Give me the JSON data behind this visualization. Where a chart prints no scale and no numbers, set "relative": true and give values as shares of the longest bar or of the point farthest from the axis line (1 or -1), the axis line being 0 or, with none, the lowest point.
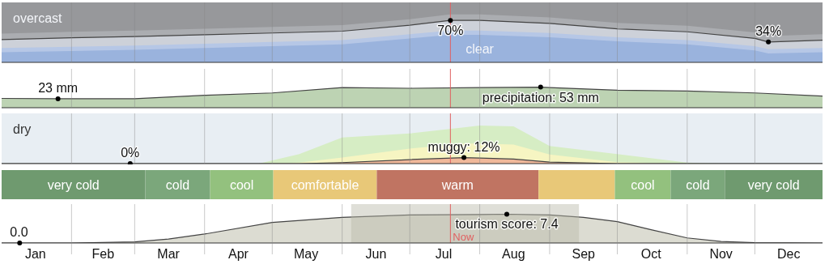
{
  "chart_data": [
    {
      "type": "area",
      "x": [
        "--01-01",
        "--02-01",
        "--03-01",
        "--04-01",
        "--05-01",
        "--06-01",
        "--07-01",
        "--07-19",
        "--08-01",
        "--09-01",
        "--10-01",
        "--11-01",
        "--12-01",
        "--12-07",
        "--12-31"
      ],
      "series": [
        {
          "color": "#abadb1",
          "values": [
            48,
            51,
            53,
            56,
            59,
            62,
            72,
            80,
            80,
            75,
            66,
            61,
            50,
            44,
            47
          ]
        },
        {
          "color": "#cdd1d9",
          "values": [
            38,
            41,
            43,
            46,
            49,
            52,
            62,
            70,
            70,
            65,
            56,
            51,
            40,
            34,
            37
          ],
          "value_labels": [
            null,
            null,
            null,
            null,
            null,
            null,
            null,
            "70%",
            null,
            null,
            null,
            null,
            null,
            "34%",
            null
          ]
        },
        {
          "color": "#b6c7e6",
          "values": [
            24,
            26,
            28,
            31,
            34,
            37,
            47,
            53,
            53,
            49,
            42,
            37,
            27,
            22,
            24
          ]
        },
        {
          "name": "clear",
          "color": "#9ab3dd",
          "values": [
            17,
            19,
            21,
            24,
            27,
            30,
            40,
            46,
            46,
            42,
            35,
            30,
            20,
            15,
            17
          ]
        }
      ],
      "bands": [
        {
          "axis": "x",
          "from": "--01-01",
          "to": "--12-31",
          "color": "#97989b",
          "label": "overcast"
        }
      ],
      "xlim": [
        "--01-01",
        "--12-31"
      ],
      "ylim": [
        0,
        100
      ],
      "xticks": [
        {
          "value": "--01-16",
          "label": "Jan"
        },
        {
          "value": "--02-15",
          "label": "Feb"
        },
        {
          "value": "--03-16",
          "label": "Mar"
        },
        {
          "value": "--04-16",
          "label": "Apr"
        },
        {
          "value": "--05-16",
          "label": "May"
        },
        {
          "value": "--06-16",
          "label": "Jun"
        },
        {
          "value": "--07-16",
          "label": "Jul"
        },
        {
          "value": "--08-16",
          "label": "Aug"
        },
        {
          "value": "--09-16",
          "label": "Sep"
        },
        {
          "value": "--10-16",
          "label": "Oct"
        },
        {
          "value": "--11-16",
          "label": "Nov"
        },
        {
          "value": "--12-16",
          "label": "Dec"
        },
        {
          "value": "--02-01",
          "label": null
        },
        {
          "value": "--03-01",
          "label": null
        },
        {
          "value": "--04-01",
          "label": null
        },
        {
          "value": "--05-01",
          "label": null
        },
        {
          "value": "--06-01",
          "label": null
        },
        {
          "value": "--07-01",
          "label": null
        },
        {
          "value": "--08-01",
          "label": null
        },
        {
          "value": "--09-01",
          "label": null
        },
        {
          "value": "--10-01",
          "label": null
        },
        {
          "value": "--11-01",
          "label": null
        },
        {
          "value": "--12-01",
          "label": null
        }
      ],
      "tick_labels": false,
      "grid": "x",
      "ref_lines": [
        {
          "axis": "x",
          "value": "--07-19",
          "label": null,
          "color": "#e06060"
        }
      ]
    },
    {
      "type": "area",
      "x": [
        "--01-01",
        "--01-26",
        "--03-01",
        "--04-01",
        "--05-01",
        "--06-01",
        "--07-01",
        "--08-01",
        "--08-28",
        "--09-01",
        "--10-01",
        "--11-01",
        "--12-01",
        "--12-31"
      ],
      "series": [
        {
          "color": "#bdd3b3",
          "values": [
            24,
            23,
            23,
            32,
            38,
            52,
            50,
            52,
            53,
            52,
            45,
            43,
            38,
            30
          ],
          "value_labels": [
            null,
            "23 mm",
            null,
            null,
            null,
            null,
            null,
            null,
            "precipitation: 53 mm",
            null,
            null,
            null,
            null,
            null
          ]
        }
      ],
      "xlim": [
        "--01-01",
        "--12-31"
      ],
      "ylim": [
        0,
        100
      ],
      "xticks": [
        {
          "value": "--01-16",
          "label": "Jan"
        },
        {
          "value": "--02-15",
          "label": "Feb"
        },
        {
          "value": "--03-16",
          "label": "Mar"
        },
        {
          "value": "--04-16",
          "label": "Apr"
        },
        {
          "value": "--05-16",
          "label": "May"
        },
        {
          "value": "--06-16",
          "label": "Jun"
        },
        {
          "value": "--07-16",
          "label": "Jul"
        },
        {
          "value": "--08-16",
          "label": "Aug"
        },
        {
          "value": "--09-16",
          "label": "Sep"
        },
        {
          "value": "--10-16",
          "label": "Oct"
        },
        {
          "value": "--11-16",
          "label": "Nov"
        },
        {
          "value": "--12-16",
          "label": "Dec"
        },
        {
          "value": "--02-01",
          "label": null
        },
        {
          "value": "--03-01",
          "label": null
        },
        {
          "value": "--04-01",
          "label": null
        },
        {
          "value": "--05-01",
          "label": null
        },
        {
          "value": "--06-01",
          "label": null
        },
        {
          "value": "--07-01",
          "label": null
        },
        {
          "value": "--08-01",
          "label": null
        },
        {
          "value": "--09-01",
          "label": null
        },
        {
          "value": "--10-01",
          "label": null
        },
        {
          "value": "--11-01",
          "label": null
        },
        {
          "value": "--12-01",
          "label": null
        }
      ],
      "tick_labels": false,
      "grid": "x",
      "ref_lines": [
        {
          "axis": "x",
          "value": "--07-19",
          "label": null,
          "color": "#e06060"
        }
      ]
    },
    {
      "type": "area",
      "x": [
        "--01-01",
        "--02-01",
        "--02-27",
        "--04-01",
        "--04-25",
        "--05-13",
        "--06-01",
        "--07-01",
        "--07-25",
        "--08-01",
        "--08-16",
        "--09-01",
        "--10-01",
        "--11-01",
        "--11-16",
        "--12-01",
        "--12-31"
      ],
      "series": [
        {
          "color": "#d6edc4",
          "values": [
            0,
            0,
            0,
            0,
            0,
            19,
            52,
            60,
            72,
            76,
            74,
            35,
            19,
            2,
            0,
            0,
            0
          ]
        },
        {
          "color": "#f6f5c2",
          "values": [
            0,
            0,
            0,
            0,
            0,
            2,
            12,
            30,
            40,
            40,
            38,
            18,
            3,
            0,
            0,
            0,
            0
          ]
        },
        {
          "color": "#f0b89a",
          "values": [
            0,
            0,
            0,
            0,
            0,
            0,
            2,
            8,
            12,
            11,
            9,
            3,
            0,
            0,
            0,
            0,
            0
          ],
          "value_labels": [
            null,
            null,
            "0%",
            null,
            null,
            null,
            null,
            null,
            "muggy: 12%",
            null,
            null,
            null,
            null,
            null,
            null,
            null,
            null
          ]
        }
      ],
      "bands": [
        {
          "axis": "x",
          "from": "--01-01",
          "to": "--12-31",
          "color": "#e8eef3",
          "label": "dry"
        }
      ],
      "xlim": [
        "--01-01",
        "--12-31"
      ],
      "ylim": [
        0,
        100
      ],
      "xticks": [
        {
          "value": "--01-16",
          "label": "Jan"
        },
        {
          "value": "--02-15",
          "label": "Feb"
        },
        {
          "value": "--03-16",
          "label": "Mar"
        },
        {
          "value": "--04-16",
          "label": "Apr"
        },
        {
          "value": "--05-16",
          "label": "May"
        },
        {
          "value": "--06-16",
          "label": "Jun"
        },
        {
          "value": "--07-16",
          "label": "Jul"
        },
        {
          "value": "--08-16",
          "label": "Aug"
        },
        {
          "value": "--09-16",
          "label": "Sep"
        },
        {
          "value": "--10-16",
          "label": "Oct"
        },
        {
          "value": "--11-16",
          "label": "Nov"
        },
        {
          "value": "--12-16",
          "label": "Dec"
        },
        {
          "value": "--02-01",
          "label": null
        },
        {
          "value": "--03-01",
          "label": null
        },
        {
          "value": "--04-01",
          "label": null
        },
        {
          "value": "--05-01",
          "label": null
        },
        {
          "value": "--06-01",
          "label": null
        },
        {
          "value": "--07-01",
          "label": null
        },
        {
          "value": "--08-01",
          "label": null
        },
        {
          "value": "--09-01",
          "label": null
        },
        {
          "value": "--10-01",
          "label": null
        },
        {
          "value": "--11-01",
          "label": null
        },
        {
          "value": "--12-01",
          "label": null
        }
      ],
      "tick_labels": false,
      "grid": "x",
      "ref_lines": [
        {
          "axis": "x",
          "value": "--07-19",
          "label": null,
          "color": "#e06060"
        }
      ]
    },
    {
      "type": "bar",
      "orientation": "horizontal",
      "stacked": true,
      "relative": true,
      "categories": [
        null
      ],
      "series": [
        {
          "name": "very cold",
          "color": "#6f9a6f",
          "values": [
            0.175
          ]
        },
        {
          "name": "cold",
          "color": "#7ba77b",
          "values": [
            0.079
          ]
        },
        {
          "name": "cool",
          "color": "#93c17e",
          "values": [
            0.077
          ]
        },
        {
          "name": "comfortable",
          "color": "#e8c878",
          "values": [
            0.126
          ]
        },
        {
          "name": "warm",
          "color": "#c07462",
          "values": [
            0.197
          ]
        },
        {
          "color": "#e8c878",
          "values": [
            0.093
          ]
        },
        {
          "name": "cool",
          "color": "#93c17e",
          "values": [
            0.068
          ]
        },
        {
          "name": "cold",
          "color": "#7ba77b",
          "values": [
            0.066
          ]
        },
        {
          "name": "very cold",
          "color": "#6f9a6f",
          "values": [
            0.119
          ]
        }
      ]
    },
    {
      "type": "area",
      "x": [
        "--01-01",
        "--01-09",
        "--02-01",
        "--03-01",
        "--03-16",
        "--04-01",
        "--05-01",
        "--06-01",
        "--07-01",
        "--08-01",
        "--08-13",
        "--09-01",
        "--09-16",
        "--10-01",
        "--10-16",
        "--11-01",
        "--11-16",
        "--12-01",
        "--12-31"
      ],
      "series": [
        {
          "color": "#dcdcd2",
          "values": [
            0,
            0,
            0,
            0.3,
            1,
            2.3,
            5.3,
            6.6,
            7.2,
            7.3,
            7.4,
            7.2,
            6.6,
            5.5,
            3.4,
            1.3,
            0.4,
            0.1,
            0
          ],
          "value_labels": [
            null,
            "0.0",
            null,
            null,
            null,
            null,
            null,
            null,
            null,
            null,
            "tourism score: 7.4",
            null,
            null,
            null,
            null,
            null,
            null,
            null,
            null
          ]
        }
      ],
      "bands": [
        {
          "axis": "x",
          "from": "--06-05",
          "to": "--09-14",
          "color": "#b9b9a8"
        }
      ],
      "xlim": [
        "--01-01",
        "--12-31"
      ],
      "ylim": [
        0,
        10
      ],
      "xticks": [
        {
          "value": "--01-16",
          "label": "Jan"
        },
        {
          "value": "--02-15",
          "label": "Feb"
        },
        {
          "value": "--03-16",
          "label": "Mar"
        },
        {
          "value": "--04-16",
          "label": "Apr"
        },
        {
          "value": "--05-16",
          "label": "May"
        },
        {
          "value": "--06-16",
          "label": "Jun"
        },
        {
          "value": "--07-16",
          "label": "Jul"
        },
        {
          "value": "--08-16",
          "label": "Aug"
        },
        {
          "value": "--09-16",
          "label": "Sep"
        },
        {
          "value": "--10-16",
          "label": "Oct"
        },
        {
          "value": "--11-16",
          "label": "Nov"
        },
        {
          "value": "--12-16",
          "label": "Dec"
        },
        {
          "value": "--02-01",
          "label": null
        },
        {
          "value": "--03-01",
          "label": null
        },
        {
          "value": "--04-01",
          "label": null
        },
        {
          "value": "--05-01",
          "label": null
        },
        {
          "value": "--06-01",
          "label": null
        },
        {
          "value": "--07-01",
          "label": null
        },
        {
          "value": "--08-01",
          "label": null
        },
        {
          "value": "--09-01",
          "label": null
        },
        {
          "value": "--10-01",
          "label": null
        },
        {
          "value": "--11-01",
          "label": null
        },
        {
          "value": "--12-01",
          "label": null
        }
      ],
      "tick_labels": "x",
      "grid": "x",
      "ref_lines": [
        {
          "axis": "x",
          "value": "--07-19",
          "label": "Now",
          "color": "#e06060"
        }
      ]
    }
  ]
}
